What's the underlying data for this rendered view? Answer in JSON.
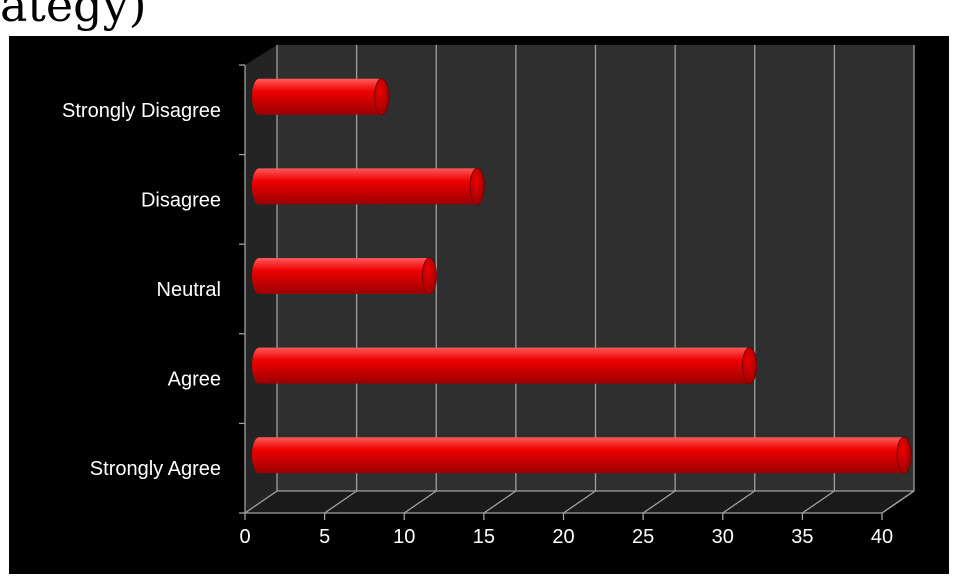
{
  "slide": {
    "title_fragment": "ategy)"
  },
  "chart_data": {
    "type": "bar",
    "orientation": "horizontal",
    "categories": [
      "Strongly Agree",
      "Agree",
      "Neutral",
      "Disagree",
      "Strongly Disagree"
    ],
    "values": [
      40.5,
      30.8,
      10.7,
      13.7,
      7.7
    ],
    "xlim": [
      0,
      40
    ],
    "xticks": [
      0,
      5,
      10,
      15,
      20,
      25,
      30,
      35,
      40
    ],
    "grid": true,
    "three_d": true,
    "colors": {
      "bar": "#ee0000",
      "bar_highlight": "#ff5a5a",
      "bar_shade": "#9a0000",
      "plot_bg": "#2f2f2f",
      "floor": "#1a1a1a",
      "grid": "#a0a0a0",
      "text": "#ffffff",
      "frame_bg": "#000000"
    }
  }
}
